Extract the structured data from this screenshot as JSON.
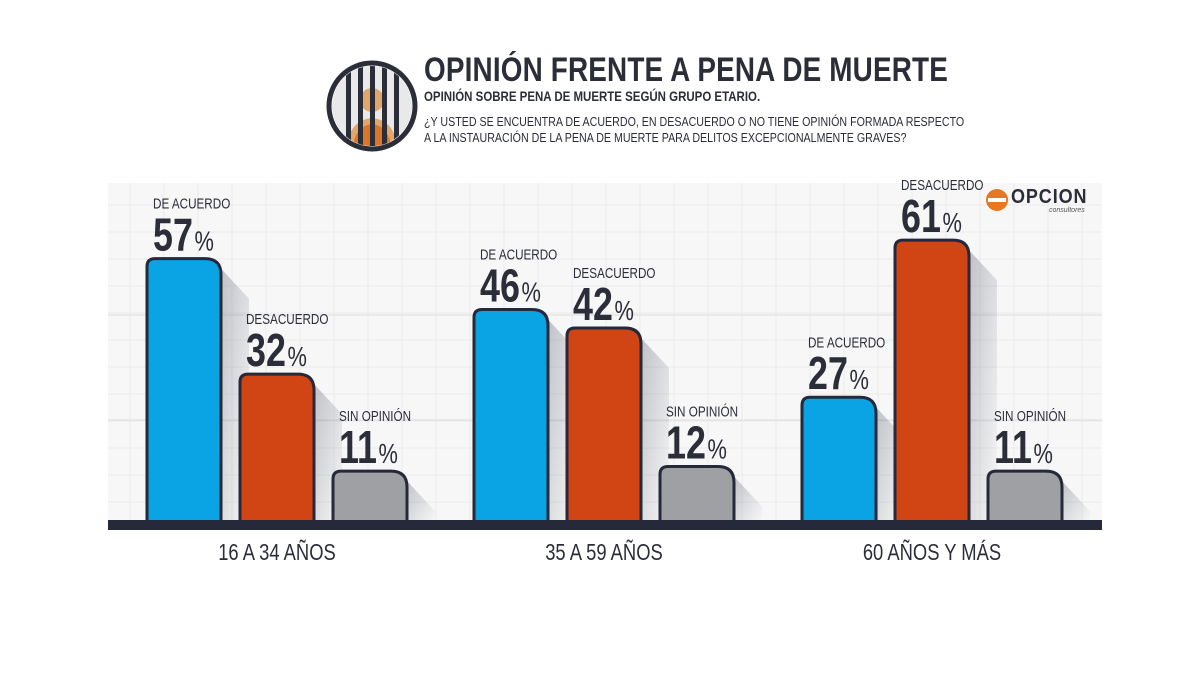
{
  "header": {
    "title": "OPINIÓN FRENTE A PENA DE MUERTE",
    "subtitle": "OPINIÓN SOBRE PENA DE MUERTE SEGÚN GRUPO ETARIO.",
    "question_line1": "¿Y USTED SE ENCUENTRA DE ACUERDO, EN DESACUERDO O NO TIENE OPINIÓN FORMADA RESPECTO",
    "question_line2": "A LA INSTAURACIÓN DE LA PENA DE MUERTE PARA DELITOS EXCEPCIONALMENTE GRAVES?",
    "icon": "prisoner-behind-bars-icon"
  },
  "brand": {
    "name": "OPCION",
    "sub": "consultores"
  },
  "colors": {
    "de_acuerdo": "#0aa3e3",
    "desacuerdo": "#d14414",
    "sin_opinion": "#9ea0a3",
    "outline": "#25293a"
  },
  "chart_data": {
    "type": "bar",
    "categories": [
      "16 A 34 AÑOS",
      "35 A 59 AÑOS",
      "60 AÑOS Y MÁS"
    ],
    "series": [
      {
        "name": "DE ACUERDO",
        "values": [
          57,
          46,
          27
        ]
      },
      {
        "name": "DESACUERDO",
        "values": [
          32,
          42,
          61
        ]
      },
      {
        "name": "SIN OPINIÓN",
        "values": [
          11,
          12,
          11
        ]
      }
    ],
    "unit": "%",
    "ylim": [
      0,
      70
    ],
    "grid": true,
    "legend": "none"
  }
}
